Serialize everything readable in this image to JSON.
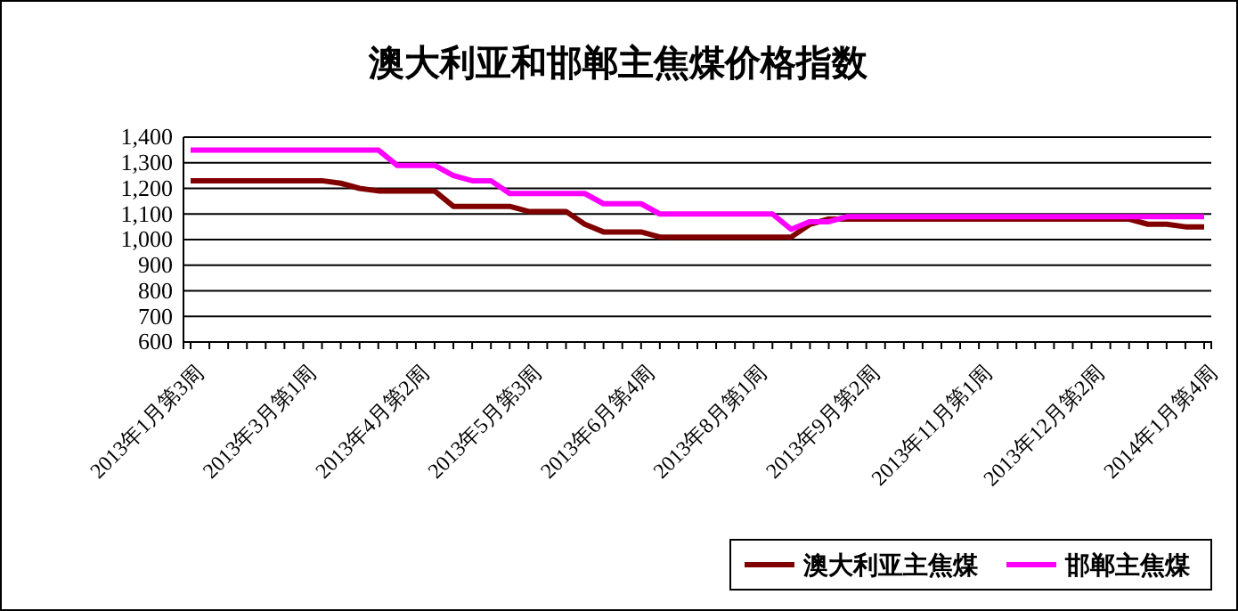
{
  "chart_data": {
    "type": "line",
    "title": "澳大利亚和邯郸主焦煤价格指数",
    "categories": [
      "2013年1月第3周",
      null,
      null,
      null,
      null,
      null,
      "2013年3月第1周",
      null,
      null,
      null,
      null,
      null,
      "2013年4月第2周",
      null,
      null,
      null,
      null,
      null,
      "2013年5月第3周",
      null,
      null,
      null,
      null,
      null,
      "2013年6月第4周",
      null,
      null,
      null,
      null,
      null,
      "2013年8月第1周",
      null,
      null,
      null,
      null,
      null,
      "2013年9月第2周",
      null,
      null,
      null,
      null,
      null,
      "2013年11月第1周",
      null,
      null,
      null,
      null,
      null,
      "2013年12月第2周",
      null,
      null,
      null,
      null,
      null,
      "2014年1月第4周"
    ],
    "series": [
      {
        "name": "澳大利亚主焦煤",
        "color": "#800000",
        "values": [
          1230,
          1230,
          1230,
          1230,
          1230,
          1230,
          1230,
          1230,
          1220,
          1200,
          1190,
          1190,
          1190,
          1190,
          1130,
          1130,
          1130,
          1130,
          1110,
          1110,
          1110,
          1060,
          1030,
          1030,
          1030,
          1010,
          1010,
          1010,
          1010,
          1010,
          1010,
          1010,
          1010,
          1060,
          1080,
          1080,
          1080,
          1080,
          1080,
          1080,
          1080,
          1080,
          1080,
          1080,
          1080,
          1080,
          1080,
          1080,
          1080,
          1080,
          1080,
          1060,
          1060,
          1050,
          1050
        ]
      },
      {
        "name": "邯郸主焦煤",
        "color": "#ff00ff",
        "values": [
          1350,
          1350,
          1350,
          1350,
          1350,
          1350,
          1350,
          1350,
          1350,
          1350,
          1350,
          1290,
          1290,
          1290,
          1250,
          1230,
          1230,
          1180,
          1180,
          1180,
          1180,
          1180,
          1140,
          1140,
          1140,
          1100,
          1100,
          1100,
          1100,
          1100,
          1100,
          1100,
          1040,
          1070,
          1070,
          1090,
          1090,
          1090,
          1090,
          1090,
          1090,
          1090,
          1090,
          1090,
          1090,
          1090,
          1090,
          1090,
          1090,
          1090,
          1090,
          1090,
          1090,
          1090,
          1090
        ]
      }
    ],
    "ylim": [
      600,
      1400
    ],
    "yticks": [
      600,
      700,
      800,
      900,
      {
        "value": 1000,
        "label": "1,000"
      },
      {
        "value": 1100,
        "label": "1,100"
      },
      {
        "value": 1200,
        "label": "1,200"
      },
      {
        "value": 1300,
        "label": "1,300"
      },
      {
        "value": 1400,
        "label": "1,400"
      }
    ],
    "grid": "y",
    "legend": "bottom right",
    "marker": "none",
    "line_style": "solid"
  }
}
